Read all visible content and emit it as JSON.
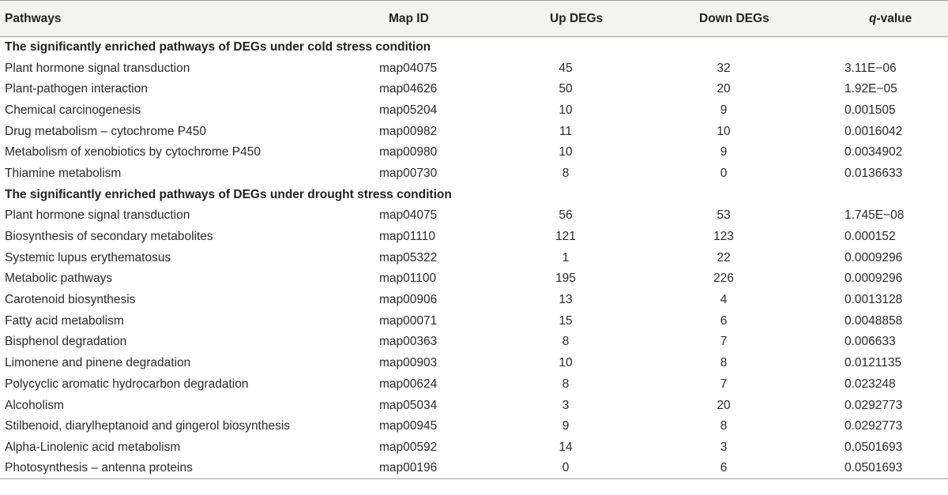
{
  "headers": {
    "pathways": "Pathways",
    "map_id": "Map ID",
    "up_degs": "Up DEGs",
    "down_degs": "Down DEGs",
    "q_italic": "q",
    "q_rest": "-value"
  },
  "sections": [
    {
      "title": "The significantly enriched pathways of DEGs under cold stress condition",
      "rows": [
        {
          "pathway": "Plant hormone signal transduction",
          "map_id": "map04075",
          "up": "45",
          "down": "32",
          "q": "3.11E−06"
        },
        {
          "pathway": "Plant-pathogen interaction",
          "map_id": "map04626",
          "up": "50",
          "down": "20",
          "q": "1.92E−05"
        },
        {
          "pathway": "Chemical carcinogenesis",
          "map_id": "map05204",
          "up": "10",
          "down": "9",
          "q": "0.001505"
        },
        {
          "pathway": "Drug metabolism – cytochrome P450",
          "map_id": "map00982",
          "up": "11",
          "down": "10",
          "q": "0.0016042"
        },
        {
          "pathway": "Metabolism of xenobiotics by cytochrome P450",
          "map_id": "map00980",
          "up": "10",
          "down": "9",
          "q": "0.0034902"
        },
        {
          "pathway": "Thiamine metabolism",
          "map_id": "map00730",
          "up": "8",
          "down": "0",
          "q": "0.0136633"
        }
      ]
    },
    {
      "title": "The significantly enriched pathways of DEGs under drought stress condition",
      "rows": [
        {
          "pathway": "Plant hormone signal transduction",
          "map_id": "map04075",
          "up": "56",
          "down": "53",
          "q": "1.745E−08"
        },
        {
          "pathway": "Biosynthesis of secondary metabolites",
          "map_id": "map01110",
          "up": "121",
          "down": "123",
          "q": "0.000152"
        },
        {
          "pathway": "Systemic lupus erythematosus",
          "map_id": "map05322",
          "up": "1",
          "down": "22",
          "q": "0.0009296"
        },
        {
          "pathway": "Metabolic pathways",
          "map_id": "map01100",
          "up": "195",
          "down": "226",
          "q": "0.0009296"
        },
        {
          "pathway": "Carotenoid biosynthesis",
          "map_id": "map00906",
          "up": "13",
          "down": "4",
          "q": "0.0013128"
        },
        {
          "pathway": "Fatty acid metabolism",
          "map_id": "map00071",
          "up": "15",
          "down": "6",
          "q": "0.0048858"
        },
        {
          "pathway": "Bisphenol degradation",
          "map_id": "map00363",
          "up": "8",
          "down": "7",
          "q": "0.006633"
        },
        {
          "pathway": "Limonene and pinene degradation",
          "map_id": "map00903",
          "up": "10",
          "down": "8",
          "q": "0.0121135"
        },
        {
          "pathway": "Polycyclic aromatic hydrocarbon degradation",
          "map_id": "map00624",
          "up": "8",
          "down": "7",
          "q": "0.023248"
        },
        {
          "pathway": "Alcoholism",
          "map_id": "map05034",
          "up": "3",
          "down": "20",
          "q": "0.0292773"
        },
        {
          "pathway": "Stilbenoid, diarylheptanoid and gingerol biosynthesis",
          "map_id": "map00945",
          "up": "9",
          "down": "8",
          "q": "0.0292773"
        },
        {
          "pathway": "Alpha-Linolenic acid metabolism",
          "map_id": "map00592",
          "up": "14",
          "down": "3",
          "q": "0.0501693"
        },
        {
          "pathway": "Photosynthesis – antenna proteins",
          "map_id": "map00196",
          "up": "0",
          "down": "6",
          "q": "0.0501693"
        }
      ]
    }
  ]
}
